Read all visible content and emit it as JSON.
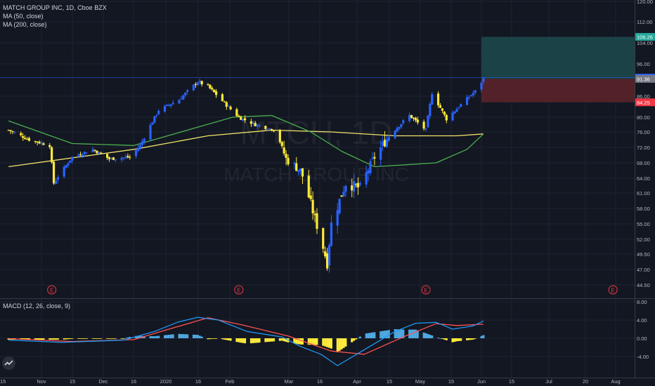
{
  "header": {
    "symbol_line": "MATCH GROUP INC, 1D, Cboe BZX",
    "ma50_label": "MA (50, close)",
    "ma200_label": "MA (200, close)"
  },
  "macd": {
    "label": "MACD (12, 26, close, 9)"
  },
  "watermark": {
    "ticker": "MTCH, 1D",
    "name": "MATCH GROUP INC"
  },
  "colors": {
    "background": "#131722",
    "grid": "#1f2331",
    "up": "#2962ff",
    "down": "#ffeb3b",
    "ma50": "#4caf50",
    "ma200": "#f2e36b",
    "macd_line": "#2196f3",
    "signal_line": "#ff5252",
    "hist_pos": "#4fa8e0",
    "hist_neg": "#ffeb3b",
    "target_zone": "#1d4a4d",
    "stop_zone": "#5a2329"
  },
  "chart_data": [
    {
      "type": "candlestick",
      "title": "MATCH GROUP INC, 1D, Cboe BZX",
      "x_ticks": [
        "15",
        "Nov",
        "15",
        "Dec",
        "16",
        "2020",
        "16",
        "Feb",
        "Mar",
        "16",
        "Apr",
        "15",
        "May",
        "15",
        "Jun",
        "15",
        "Jul",
        "20",
        "Aug"
      ],
      "y_ticks": [
        "120.00",
        "112.00",
        "104.00",
        "96.00",
        "86.00",
        "80.00",
        "76.00",
        "72.00",
        "68.00",
        "64.00",
        "61.00",
        "58.00",
        "55.00",
        "52.00",
        "49.50",
        "47.00",
        "44.50"
      ],
      "price_labels": [
        {
          "text": "106.26",
          "value": 106.26,
          "color": "#26a69a"
        },
        {
          "text": "91.73",
          "value": 91.73,
          "color": "#2962ff"
        },
        {
          "text": "91.36",
          "value": 91.36,
          "color": "#787b86"
        },
        {
          "text": "84.25",
          "value": 84.25,
          "color": "#f23645"
        }
      ],
      "earnings_markers": [
        "E",
        "E",
        "E",
        "E"
      ],
      "earnings_dates": [
        "2019-11-05",
        "2020-02-04",
        "2020-05-05",
        "2020-08-04"
      ],
      "position": {
        "entry": 91.36,
        "target": 106.26,
        "stop": 84.25
      },
      "series": [
        {
          "name": "MA (50, close)",
          "color": "#4caf50"
        },
        {
          "name": "MA (200, close)",
          "color": "#f2e36b"
        }
      ],
      "path": [
        {
          "date": "2019-10-15",
          "close": 76.5
        },
        {
          "date": "2019-10-25",
          "close": 74.0
        },
        {
          "date": "2019-11-04",
          "close": 72.5
        },
        {
          "date": "2019-11-06",
          "close": 63.0
        },
        {
          "date": "2019-11-15",
          "close": 69.5
        },
        {
          "date": "2019-11-25",
          "close": 71.5
        },
        {
          "date": "2019-12-03",
          "close": 69.0
        },
        {
          "date": "2019-12-13",
          "close": 69.5
        },
        {
          "date": "2019-12-18",
          "close": 72.5
        },
        {
          "date": "2019-12-27",
          "close": 82.0
        },
        {
          "date": "2020-01-06",
          "close": 85.0
        },
        {
          "date": "2020-01-15",
          "close": 90.5
        },
        {
          "date": "2020-01-20",
          "close": 89.0
        },
        {
          "date": "2020-01-28",
          "close": 84.0
        },
        {
          "date": "2020-02-04",
          "close": 80.0
        },
        {
          "date": "2020-02-12",
          "close": 78.0
        },
        {
          "date": "2020-02-22",
          "close": 76.5
        },
        {
          "date": "2020-02-27",
          "close": 69.0
        },
        {
          "date": "2020-03-05",
          "close": 66.0
        },
        {
          "date": "2020-03-12",
          "close": 56.0
        },
        {
          "date": "2020-03-18",
          "close": 48.0
        },
        {
          "date": "2020-03-20",
          "close": 55.0
        },
        {
          "date": "2020-03-27",
          "close": 63.0
        },
        {
          "date": "2020-04-03",
          "close": 62.0
        },
        {
          "date": "2020-04-10",
          "close": 69.5
        },
        {
          "date": "2020-04-17",
          "close": 75.0
        },
        {
          "date": "2020-04-27",
          "close": 80.5
        },
        {
          "date": "2020-05-05",
          "close": 76.5
        },
        {
          "date": "2020-05-08",
          "close": 87.0
        },
        {
          "date": "2020-05-15",
          "close": 79.5
        },
        {
          "date": "2020-05-21",
          "close": 83.0
        },
        {
          "date": "2020-05-29",
          "close": 87.5
        },
        {
          "date": "2020-06-02",
          "close": 91.36
        }
      ],
      "ma50": [
        {
          "date": "2019-10-15",
          "value": 79.0
        },
        {
          "date": "2019-11-15",
          "value": 73.0
        },
        {
          "date": "2019-12-15",
          "value": 72.5
        },
        {
          "date": "2020-01-10",
          "value": 76.5
        },
        {
          "date": "2020-02-01",
          "value": 80.0
        },
        {
          "date": "2020-02-20",
          "value": 80.5
        },
        {
          "date": "2020-03-10",
          "value": 76.0
        },
        {
          "date": "2020-03-25",
          "value": 71.0
        },
        {
          "date": "2020-04-10",
          "value": 67.0
        },
        {
          "date": "2020-04-25",
          "value": 67.5
        },
        {
          "date": "2020-05-10",
          "value": 68.0
        },
        {
          "date": "2020-05-25",
          "value": 71.5
        },
        {
          "date": "2020-06-02",
          "value": 75.5
        }
      ],
      "ma200": [
        {
          "date": "2019-10-15",
          "value": 67.0
        },
        {
          "date": "2019-12-15",
          "value": 71.5
        },
        {
          "date": "2020-01-20",
          "value": 75.0
        },
        {
          "date": "2020-02-20",
          "value": 76.5
        },
        {
          "date": "2020-03-20",
          "value": 76.0
        },
        {
          "date": "2020-04-20",
          "value": 75.0
        },
        {
          "date": "2020-05-20",
          "value": 75.0
        },
        {
          "date": "2020-06-02",
          "value": 75.5
        }
      ]
    },
    {
      "type": "histogram",
      "title": "MACD (12, 26, close, 9)",
      "y_ticks": [
        "8.00",
        "4.00",
        "0.00",
        "-4.00"
      ],
      "ylim": [
        -6.5,
        8.0
      ],
      "series": [
        {
          "name": "MACD",
          "color": "#2196f3"
        },
        {
          "name": "Signal",
          "color": "#ff5252"
        },
        {
          "name": "Histogram",
          "color": "#4fa8e0"
        }
      ],
      "macd_path": [
        {
          "date": "2019-10-15",
          "value": -0.4
        },
        {
          "date": "2019-11-10",
          "value": -0.9
        },
        {
          "date": "2019-12-10",
          "value": -0.4
        },
        {
          "date": "2019-12-25",
          "value": 1.5
        },
        {
          "date": "2020-01-05",
          "value": 3.5
        },
        {
          "date": "2020-01-15",
          "value": 4.6
        },
        {
          "date": "2020-01-25",
          "value": 4.0
        },
        {
          "date": "2020-02-08",
          "value": 1.5
        },
        {
          "date": "2020-02-25",
          "value": 0.3
        },
        {
          "date": "2020-03-05",
          "value": -1.8
        },
        {
          "date": "2020-03-15",
          "value": -3.5
        },
        {
          "date": "2020-03-23",
          "value": -6.0
        },
        {
          "date": "2020-04-05",
          "value": -2.5
        },
        {
          "date": "2020-04-20",
          "value": 1.5
        },
        {
          "date": "2020-04-30",
          "value": 3.3
        },
        {
          "date": "2020-05-10",
          "value": 3.5
        },
        {
          "date": "2020-05-18",
          "value": 2.0
        },
        {
          "date": "2020-05-28",
          "value": 2.7
        },
        {
          "date": "2020-06-02",
          "value": 3.8
        }
      ],
      "signal_path": [
        {
          "date": "2019-10-15",
          "value": -0.1
        },
        {
          "date": "2019-11-15",
          "value": -0.7
        },
        {
          "date": "2019-12-15",
          "value": -0.3
        },
        {
          "date": "2020-01-01",
          "value": 2.0
        },
        {
          "date": "2020-01-20",
          "value": 4.5
        },
        {
          "date": "2020-02-05",
          "value": 3.0
        },
        {
          "date": "2020-02-28",
          "value": 0.5
        },
        {
          "date": "2020-03-20",
          "value": -2.8
        },
        {
          "date": "2020-04-05",
          "value": -3.5
        },
        {
          "date": "2020-04-25",
          "value": 0.5
        },
        {
          "date": "2020-05-10",
          "value": 3.2
        },
        {
          "date": "2020-05-20",
          "value": 2.8
        },
        {
          "date": "2020-06-02",
          "value": 3.1
        }
      ]
    }
  ]
}
